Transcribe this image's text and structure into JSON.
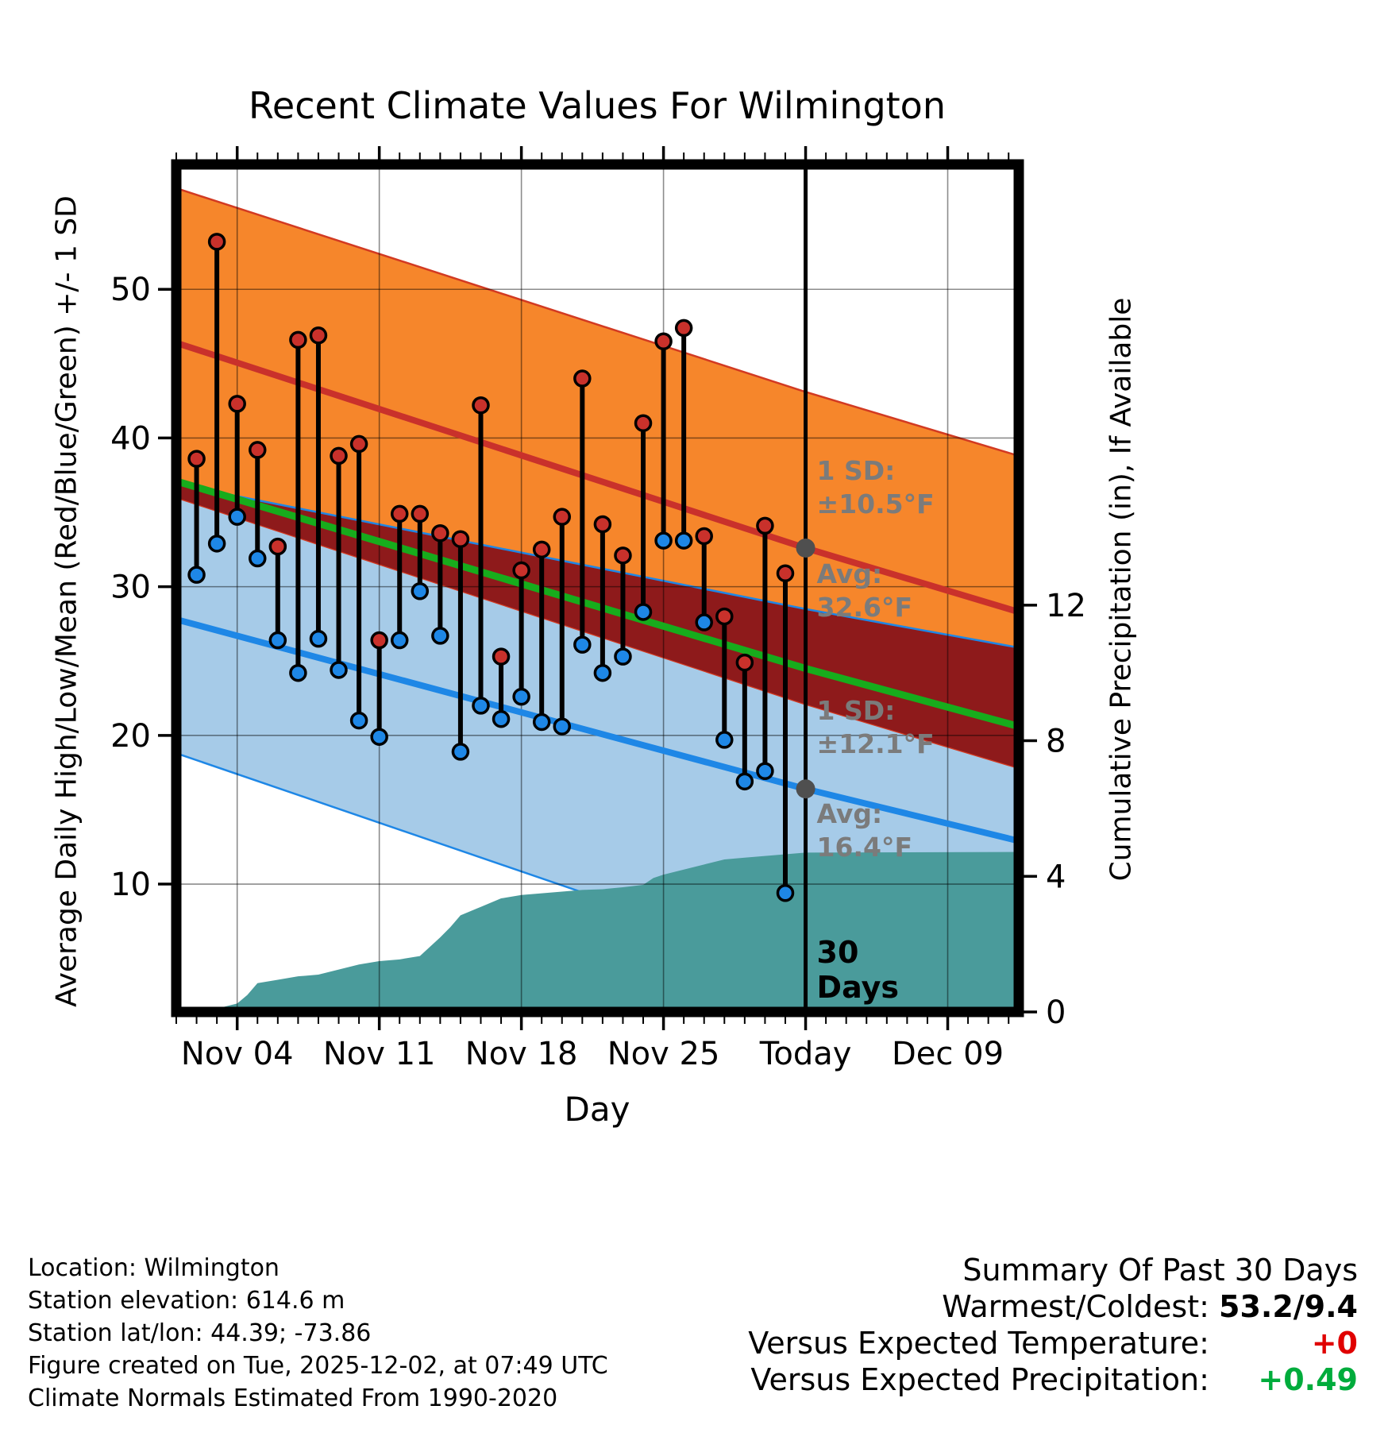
{
  "chart_data": {
    "type": "line",
    "title": "Recent Climate Values For Wilmington",
    "xlabel": "Day",
    "ylabel_left": "Average Daily High/Low/Mean (Red/Blue/Green) +/- 1 SD",
    "ylabel_right": "Cumulative Precipitation (in), If Available",
    "x_domain_days": [
      0,
      41.5
    ],
    "y_left_domain": [
      1.4,
      58.4
    ],
    "y_right_domain": [
      0,
      25
    ],
    "x_ticks": [
      {
        "label": "Nov 04",
        "day": 3
      },
      {
        "label": "Nov 11",
        "day": 10
      },
      {
        "label": "Nov 18",
        "day": 17
      },
      {
        "label": "Nov 25",
        "day": 24
      },
      {
        "label": "Today",
        "day": 31
      },
      {
        "label": "Dec 09",
        "day": 38
      }
    ],
    "left_ticks": [
      10,
      20,
      30,
      40,
      50
    ],
    "right_ticks": [
      0,
      4,
      8,
      12
    ],
    "bands": {
      "high": {
        "days": [
          0,
          31,
          41.5
        ],
        "avg": [
          46.4,
          32.6,
          28.3
        ],
        "upper": [
          56.8,
          43.1,
          38.8
        ],
        "lower": [
          36.0,
          22.1,
          17.8
        ]
      },
      "low": {
        "days": [
          0,
          31,
          41.5
        ],
        "avg": [
          27.8,
          16.4,
          12.9
        ],
        "upper": [
          36.9,
          28.5,
          25.9
        ],
        "lower": [
          18.8,
          4.3,
          -0.1
        ]
      },
      "mean": {
        "days": [
          0,
          31,
          41.5
        ],
        "values": [
          37.1,
          24.5,
          20.6
        ]
      }
    },
    "daily": [
      {
        "date": "Nov 02",
        "day": 1,
        "high": 38.6,
        "low": 30.8
      },
      {
        "date": "Nov 03",
        "day": 2,
        "high": 53.2,
        "low": 32.9
      },
      {
        "date": "Nov 04",
        "day": 3,
        "high": 42.3,
        "low": 34.7
      },
      {
        "date": "Nov 05",
        "day": 4,
        "high": 39.2,
        "low": 31.9
      },
      {
        "date": "Nov 06",
        "day": 5,
        "high": 32.7,
        "low": 26.4
      },
      {
        "date": "Nov 07",
        "day": 6,
        "high": 46.6,
        "low": 24.2
      },
      {
        "date": "Nov 08",
        "day": 7,
        "high": 46.9,
        "low": 26.5
      },
      {
        "date": "Nov 09",
        "day": 8,
        "high": 38.8,
        "low": 24.4
      },
      {
        "date": "Nov 10",
        "day": 9,
        "high": 39.6,
        "low": 21.0
      },
      {
        "date": "Nov 11",
        "day": 10,
        "high": 26.4,
        "low": 19.9
      },
      {
        "date": "Nov 12",
        "day": 11,
        "high": 34.9,
        "low": 26.4
      },
      {
        "date": "Nov 13",
        "day": 12,
        "high": 34.9,
        "low": 29.7
      },
      {
        "date": "Nov 14",
        "day": 13,
        "high": 33.6,
        "low": 26.7
      },
      {
        "date": "Nov 15",
        "day": 14,
        "high": 33.2,
        "low": 18.9
      },
      {
        "date": "Nov 16",
        "day": 15,
        "high": 42.2,
        "low": 22.0
      },
      {
        "date": "Nov 17",
        "day": 16,
        "high": 25.3,
        "low": 21.1
      },
      {
        "date": "Nov 18",
        "day": 17,
        "high": 31.1,
        "low": 22.6
      },
      {
        "date": "Nov 19",
        "day": 18,
        "high": 32.5,
        "low": 20.9
      },
      {
        "date": "Nov 20",
        "day": 19,
        "high": 34.7,
        "low": 20.6
      },
      {
        "date": "Nov 21",
        "day": 20,
        "high": 44.0,
        "low": 26.1
      },
      {
        "date": "Nov 22",
        "day": 21,
        "high": 34.2,
        "low": 24.2
      },
      {
        "date": "Nov 23",
        "day": 22,
        "high": 32.1,
        "low": 25.3
      },
      {
        "date": "Nov 24",
        "day": 23,
        "high": 41.0,
        "low": 28.3
      },
      {
        "date": "Nov 25",
        "day": 24,
        "high": 46.5,
        "low": 33.1
      },
      {
        "date": "Nov 26",
        "day": 25,
        "high": 47.4,
        "low": 33.1
      },
      {
        "date": "Nov 27",
        "day": 26,
        "high": 33.4,
        "low": 27.6
      },
      {
        "date": "Nov 28",
        "day": 27,
        "high": 28.0,
        "low": 19.7
      },
      {
        "date": "Nov 29",
        "day": 28,
        "high": 24.9,
        "low": 16.9
      },
      {
        "date": "Nov 30",
        "day": 29,
        "high": 34.1,
        "low": 17.6
      },
      {
        "date": "Dec 01",
        "day": 30,
        "high": 30.9,
        "low": 9.4
      }
    ],
    "precip_cumulative": {
      "days": [
        1,
        2,
        3,
        3.5,
        4,
        5,
        6,
        7,
        8,
        9,
        10,
        11,
        12,
        13,
        13.5,
        14,
        15,
        16,
        17,
        18,
        19,
        20,
        21,
        22,
        23,
        23.5,
        24,
        25,
        26,
        27,
        28,
        29,
        30,
        31,
        41.5
      ],
      "values": [
        0,
        0.1,
        0.25,
        0.5,
        0.85,
        0.95,
        1.05,
        1.1,
        1.25,
        1.4,
        1.5,
        1.55,
        1.65,
        2.2,
        2.5,
        2.85,
        3.1,
        3.35,
        3.45,
        3.5,
        3.55,
        3.6,
        3.62,
        3.68,
        3.75,
        3.95,
        4.05,
        4.2,
        4.35,
        4.5,
        4.55,
        4.6,
        4.65,
        4.7,
        4.72
      ]
    },
    "today": {
      "day": 31,
      "sd_high": [
        "1 SD:",
        "±10.5°F"
      ],
      "avg_high": {
        "value": 32.6,
        "lines": [
          "Avg:",
          "32.6°F"
        ]
      },
      "sd_low": [
        "1 SD:",
        "±12.1°F"
      ],
      "avg_low": {
        "value": 16.4,
        "lines": [
          "Avg:",
          "16.4°F"
        ]
      },
      "days_label": [
        "30",
        "Days"
      ]
    }
  },
  "colors": {
    "high_band": "#F6862B",
    "high_edge": "#D23A22",
    "high_line": "#C9312B",
    "overlap_band": "#8E1A1B",
    "low_band": "#A6CBE8",
    "low_line": "#1E87E6",
    "mean_line": "#17AC1C",
    "precip": "#4A9B9B",
    "high_dot": "#C9312B",
    "low_dot": "#1E87E6",
    "grid": "rgba(0,0,0,0.45)",
    "annotation": "#7B7B7B",
    "marker_gray": "#4F4F4F"
  },
  "footer_left": {
    "location": "Location: Wilmington",
    "elevation": "Station elevation: 614.6 m",
    "latlon": "Station lat/lon: 44.39; -73.86",
    "created": "Figure created on Tue, 2025-12-02, at 07:49 UTC",
    "normals": "Climate Normals Estimated From 1990-2020"
  },
  "summary": {
    "title": "Summary Of Past 30 Days",
    "rows": [
      {
        "label": "Warmest/Coldest:",
        "value": "53.2/9.4",
        "color": "#000000"
      },
      {
        "label": "Versus Expected Temperature:",
        "value": "+0",
        "color": "#E00000"
      },
      {
        "label": "Versus Expected Precipitation:",
        "value": "+0.49",
        "color": "#00AC3C"
      }
    ]
  }
}
